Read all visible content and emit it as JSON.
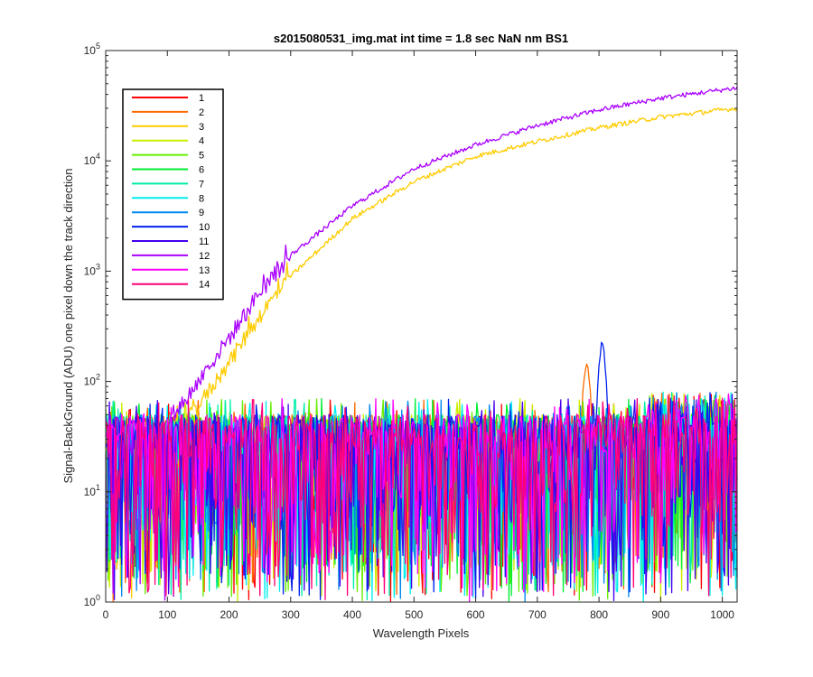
{
  "chart_data": {
    "type": "line",
    "title": "s2015080531_img.mat int time = 1.8 sec  NaN nm BS1",
    "xlabel": "Wavelength Pixels",
    "ylabel": "Signal-BackGround (ADU) one pixel down the track direction",
    "xlim": [
      0,
      1024
    ],
    "ylim": [
      1,
      100000
    ],
    "yscale": "log",
    "x_ticks": [
      0,
      100,
      200,
      300,
      400,
      500,
      600,
      700,
      800,
      900,
      1000
    ],
    "x_tick_labels": [
      "0",
      "100",
      "200",
      "300",
      "400",
      "500",
      "600",
      "700",
      "800",
      "900",
      "1000"
    ],
    "y_ticks": [
      1,
      10,
      100,
      1000,
      10000,
      100000
    ],
    "y_tick_labels": [
      {
        "base": "10",
        "exp": "0"
      },
      {
        "base": "10",
        "exp": "1"
      },
      {
        "base": "10",
        "exp": "2"
      },
      {
        "base": "10",
        "exp": "3"
      },
      {
        "base": "10",
        "exp": "4"
      },
      {
        "base": "10",
        "exp": "5"
      }
    ],
    "grid": false,
    "legend_position": "top-left",
    "series": [
      {
        "name": "1",
        "color": "#ff0000",
        "kind": "noise"
      },
      {
        "name": "2",
        "color": "#ff6a00",
        "kind": "noise",
        "peak": {
          "x": 780,
          "y": 150
        }
      },
      {
        "name": "3",
        "color": "#ffcc00",
        "kind": "rising",
        "x": [
          125,
          150,
          200,
          250,
          300,
          400,
          500,
          600,
          700,
          800,
          900,
          1024
        ],
        "y": [
          40,
          60,
          150,
          400,
          900,
          3000,
          6500,
          11000,
          15000,
          20000,
          25000,
          30000
        ]
      },
      {
        "name": "4",
        "color": "#ccee00",
        "kind": "noise"
      },
      {
        "name": "5",
        "color": "#66ee00",
        "kind": "noise"
      },
      {
        "name": "6",
        "color": "#00ee33",
        "kind": "noise"
      },
      {
        "name": "7",
        "color": "#00eeaa",
        "kind": "noise"
      },
      {
        "name": "8",
        "color": "#00eeee",
        "kind": "noise"
      },
      {
        "name": "9",
        "color": "#0088ee",
        "kind": "noise"
      },
      {
        "name": "10",
        "color": "#0022ee",
        "kind": "noise",
        "peak": {
          "x": 805,
          "y": 220
        }
      },
      {
        "name": "11",
        "color": "#4400ee",
        "kind": "noise"
      },
      {
        "name": "12",
        "color": "#aa00ff",
        "kind": "rising",
        "x": [
          100,
          150,
          200,
          250,
          300,
          400,
          500,
          600,
          700,
          800,
          900,
          1024
        ],
        "y": [
          40,
          100,
          250,
          650,
          1400,
          3900,
          8500,
          14000,
          21000,
          29000,
          37000,
          46000
        ]
      },
      {
        "name": "13",
        "color": "#ff00ff",
        "kind": "noise"
      },
      {
        "name": "14",
        "color": "#ff0077",
        "kind": "noise"
      }
    ]
  }
}
